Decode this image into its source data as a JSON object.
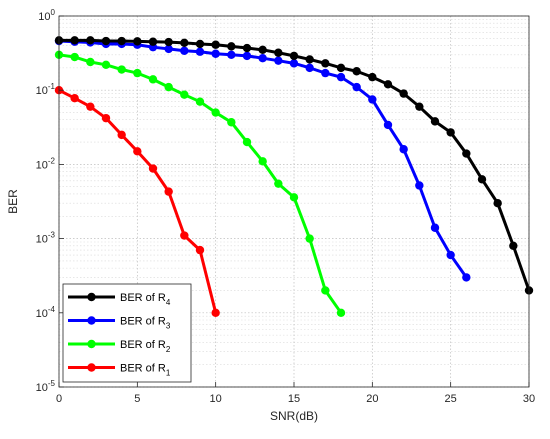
{
  "chart_data": {
    "type": "line",
    "title": "",
    "xlabel": "SNR(dB)",
    "ylabel": "BER",
    "xlim": [
      0,
      30
    ],
    "ylim": [
      1e-05,
      1
    ],
    "yscale": "log",
    "grid": true,
    "legend_position": "lower-left",
    "x_ticks": [
      0,
      5,
      10,
      15,
      20,
      25,
      30
    ],
    "y_ticks": [
      {
        "base": "10",
        "exp": "0",
        "value": 1
      },
      {
        "base": "10",
        "exp": "-1",
        "value": 0.1
      },
      {
        "base": "10",
        "exp": "-2",
        "value": 0.01
      },
      {
        "base": "10",
        "exp": "-3",
        "value": 0.001
      },
      {
        "base": "10",
        "exp": "-4",
        "value": 0.0001
      },
      {
        "base": "10",
        "exp": "-5",
        "value": 1e-05
      }
    ],
    "series": [
      {
        "name": "BER of R",
        "sub": "4",
        "color": "#000000",
        "x": [
          0,
          1,
          2,
          3,
          4,
          5,
          6,
          7,
          8,
          9,
          10,
          11,
          12,
          13,
          14,
          15,
          16,
          17,
          18,
          19,
          20,
          21,
          22,
          23,
          24,
          25,
          26,
          27,
          28,
          29,
          30
        ],
        "y": [
          0.47,
          0.47,
          0.47,
          0.46,
          0.46,
          0.455,
          0.45,
          0.445,
          0.435,
          0.42,
          0.41,
          0.39,
          0.37,
          0.35,
          0.32,
          0.29,
          0.26,
          0.23,
          0.2,
          0.18,
          0.15,
          0.12,
          0.09,
          0.06,
          0.038,
          0.027,
          0.014,
          0.0063,
          0.003,
          0.0008,
          0.0002
        ]
      },
      {
        "name": "BER of R",
        "sub": "3",
        "color": "#0000ff",
        "x": [
          0,
          1,
          2,
          3,
          4,
          5,
          6,
          7,
          8,
          9,
          10,
          11,
          12,
          13,
          14,
          15,
          16,
          17,
          18,
          19,
          20,
          21,
          22,
          23,
          24,
          25,
          26
        ],
        "y": [
          0.46,
          0.45,
          0.44,
          0.42,
          0.42,
          0.41,
          0.38,
          0.36,
          0.34,
          0.33,
          0.31,
          0.3,
          0.29,
          0.27,
          0.25,
          0.23,
          0.2,
          0.17,
          0.15,
          0.11,
          0.075,
          0.034,
          0.016,
          0.0052,
          0.0014,
          0.0006,
          0.0003
        ]
      },
      {
        "name": "BER of R",
        "sub": "2",
        "color": "#00ff00",
        "x": [
          0,
          1,
          2,
          3,
          4,
          5,
          6,
          7,
          8,
          9,
          10,
          11,
          12,
          13,
          14,
          15,
          16,
          17,
          18
        ],
        "y": [
          0.3,
          0.28,
          0.24,
          0.22,
          0.19,
          0.17,
          0.14,
          0.11,
          0.087,
          0.07,
          0.05,
          0.037,
          0.02,
          0.011,
          0.0055,
          0.0036,
          0.001,
          0.0002,
          0.0001
        ]
      },
      {
        "name": "BER of R",
        "sub": "1",
        "color": "#ff0000",
        "x": [
          0,
          1,
          2,
          3,
          4,
          5,
          6,
          7,
          8,
          9,
          10
        ],
        "y": [
          0.1,
          0.078,
          0.06,
          0.042,
          0.025,
          0.015,
          0.0088,
          0.0043,
          0.0011,
          0.0007,
          0.0001
        ]
      }
    ]
  }
}
